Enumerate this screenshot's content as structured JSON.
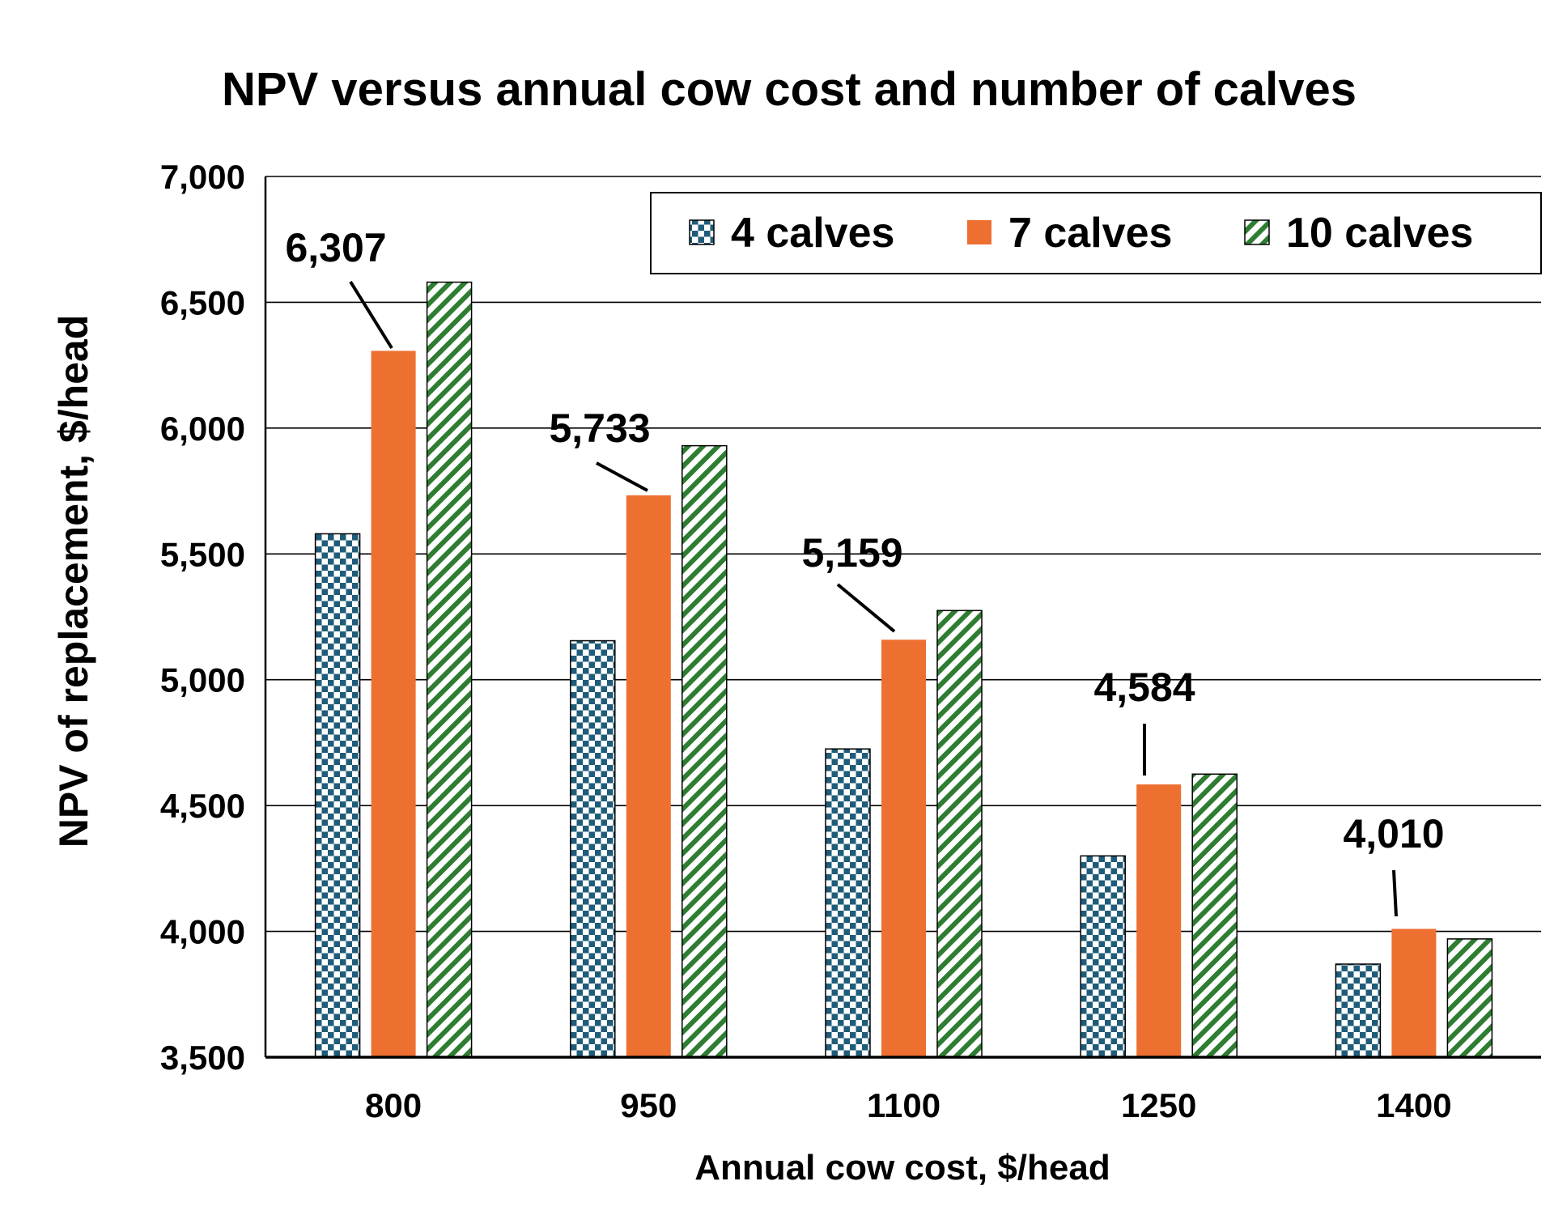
{
  "chart_data": {
    "type": "bar",
    "title": "NPV versus annual cow cost and number of calves",
    "xlabel": "Annual cow cost, $/head",
    "ylabel": "NPV of replacement, $/head",
    "categories": [
      "800",
      "950",
      "1100",
      "1250",
      "1400"
    ],
    "ylim": [
      3500,
      7000
    ],
    "yticks": [
      3500,
      4000,
      4500,
      5000,
      5500,
      6000,
      6500,
      7000
    ],
    "ytick_labels": [
      "3,500",
      "4,000",
      "4,500",
      "5,000",
      "5,500",
      "6,000",
      "6,500",
      "7,000"
    ],
    "grid": true,
    "legend_position": "top-right",
    "series": [
      {
        "name": "4 calves",
        "values": [
          5580,
          5155,
          4725,
          4300,
          3870
        ],
        "color": "#1f5c7a",
        "pattern": "checker"
      },
      {
        "name": "7 calves",
        "values": [
          6307,
          5733,
          5159,
          4584,
          4010
        ],
        "color": "#ed7031",
        "pattern": "solid"
      },
      {
        "name": "10 calves",
        "values": [
          6580,
          5930,
          5275,
          4625,
          3970
        ],
        "color": "#2e7d32",
        "pattern": "diagonal"
      }
    ],
    "annotations": [
      {
        "series": "7 calves",
        "category": "800",
        "text": "6,307"
      },
      {
        "series": "7 calves",
        "category": "950",
        "text": "5,733"
      },
      {
        "series": "7 calves",
        "category": "1100",
        "text": "5,159"
      },
      {
        "series": "7 calves",
        "category": "1250",
        "text": "4,584"
      },
      {
        "series": "7 calves",
        "category": "1400",
        "text": "4,010"
      }
    ]
  }
}
